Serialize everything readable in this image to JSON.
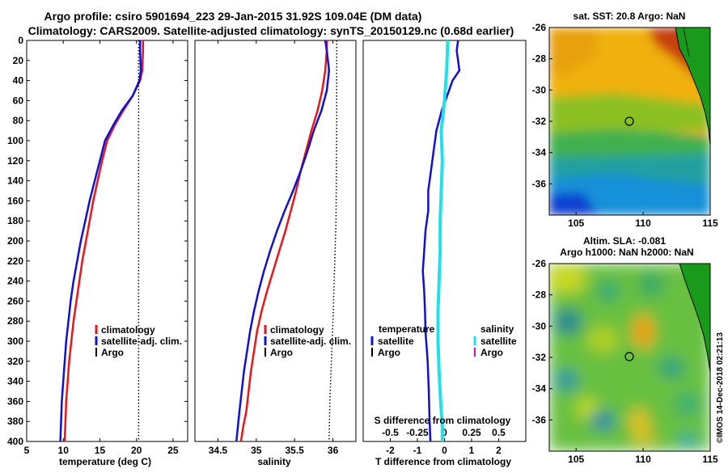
{
  "titles": {
    "line1": "Argo profile: csiro 5901694_223 29-Jan-2015 31.92S 109.04E (DM data)",
    "line2": "Climatology: CARS2009. Satellite-adjusted climatology: synTS_20150129.nc (0.68d earlier)"
  },
  "colors": {
    "climatology": "#e8161b",
    "satellite": "#1010d0",
    "satellite_light": "#22e0e8",
    "argo": "#000000",
    "s_argo": "#c018c0"
  },
  "chart_data": [
    {
      "type": "line",
      "name": "temperature",
      "xlabel": "temperature (deg C)",
      "ylabel": "",
      "xlim": [
        5,
        27
      ],
      "ylim": [
        400,
        0
      ],
      "xticks": [
        "5",
        "10",
        "15",
        "20",
        "25"
      ],
      "yticks": [
        "0",
        "20",
        "40",
        "60",
        "80",
        "100",
        "120",
        "140",
        "160",
        "180",
        "200",
        "220",
        "240",
        "260",
        "280",
        "300",
        "320",
        "340",
        "360",
        "380",
        "400"
      ],
      "legend": [
        "climatology",
        "satellite-adj. clim.",
        "Argo"
      ],
      "series": [
        {
          "name": "climatology",
          "color": "climatology",
          "x": [
            20.9,
            20.9,
            20.8,
            20.5,
            19.5,
            18.2,
            17.0,
            16.0,
            15.3,
            14.7,
            14.1,
            13.6,
            13.1,
            12.6,
            12.2,
            11.8,
            11.4,
            11.1,
            10.8,
            10.6,
            10.4,
            10.2
          ],
          "y": [
            0,
            10,
            30,
            40,
            55,
            70,
            85,
            100,
            120,
            140,
            160,
            180,
            200,
            220,
            240,
            260,
            280,
            300,
            320,
            340,
            360,
            400
          ]
        },
        {
          "name": "satellite-adj. clim.",
          "color": "satellite",
          "x": [
            20.5,
            20.5,
            20.6,
            20.4,
            19.5,
            18.0,
            16.8,
            15.7,
            15.0,
            14.3,
            13.6,
            13.0,
            12.4,
            11.9,
            11.4,
            11.0,
            10.7,
            10.4,
            10.2,
            10.0,
            9.8,
            9.6
          ],
          "y": [
            0,
            10,
            30,
            40,
            55,
            70,
            85,
            100,
            120,
            140,
            160,
            180,
            200,
            220,
            240,
            260,
            280,
            300,
            320,
            340,
            360,
            400
          ]
        },
        {
          "name": "Argo",
          "color": "argo",
          "dotted": true,
          "x": [
            20.3,
            20.3
          ],
          "y": [
            0,
            400
          ]
        }
      ]
    },
    {
      "type": "line",
      "name": "salinity",
      "xlabel": "salinity",
      "xlim": [
        34.2,
        36.3
      ],
      "ylim": [
        400,
        0
      ],
      "xticks": [
        "34.5",
        "35",
        "35.5",
        "36"
      ],
      "legend": [
        "climatology",
        "satellite-adj. clim.",
        "Argo"
      ],
      "series": [
        {
          "name": "climatology",
          "color": "climatology",
          "x": [
            35.92,
            35.92,
            35.9,
            35.86,
            35.8,
            35.72,
            35.65,
            35.58,
            35.52,
            35.45,
            35.38,
            35.3,
            35.22,
            35.14,
            35.07,
            35.01,
            34.97,
            34.93,
            34.9,
            34.87,
            34.83,
            34.8
          ],
          "y": [
            0,
            10,
            30,
            50,
            70,
            90,
            110,
            130,
            150,
            170,
            190,
            210,
            230,
            250,
            270,
            290,
            310,
            330,
            350,
            370,
            385,
            400
          ]
        },
        {
          "name": "satellite-adj. clim.",
          "color": "satellite",
          "x": [
            35.9,
            35.92,
            35.95,
            35.92,
            35.85,
            35.75,
            35.67,
            35.58,
            35.48,
            35.37,
            35.27,
            35.18,
            35.1,
            35.03,
            34.97,
            34.92,
            34.88,
            34.84,
            34.81,
            34.78,
            34.76,
            34.74
          ],
          "y": [
            0,
            10,
            30,
            50,
            70,
            90,
            110,
            130,
            150,
            170,
            190,
            210,
            230,
            250,
            270,
            290,
            310,
            330,
            350,
            370,
            385,
            400
          ]
        },
        {
          "name": "Argo",
          "color": "argo",
          "dotted": true,
          "x": [
            36.05,
            36.05,
            36.04,
            36.0,
            35.96,
            35.95
          ],
          "y": [
            0,
            80,
            180,
            280,
            360,
            400
          ]
        }
      ]
    },
    {
      "type": "line",
      "name": "difference from climatology",
      "xlabel": "T difference from climatology",
      "xlabel_top": "S difference from climatology",
      "xlim_T": [
        -3,
        3
      ],
      "xlim_S": [
        -0.75,
        0.75
      ],
      "ylim": [
        400,
        0
      ],
      "xticks_T": [
        "-2",
        "-1",
        "0",
        "1",
        "2"
      ],
      "xticks_S": [
        "-0.5",
        "-0.25",
        "0",
        "0.25",
        "0.5"
      ],
      "legend_temperature": {
        "title": "temperature",
        "items": [
          "satellite",
          "Argo"
        ]
      },
      "legend_salinity": {
        "title": "salinity",
        "items": [
          "satellite",
          "Argo"
        ]
      },
      "series": [
        {
          "name": "T satellite",
          "axis": "T",
          "color": "satellite",
          "x": [
            0.5,
            0.45,
            0.5,
            0.55,
            0.3,
            0.1,
            -0.1,
            -0.3,
            -0.4,
            -0.5,
            -0.6,
            -0.6,
            -0.7,
            -0.75,
            -0.8,
            -0.75,
            -0.72,
            -0.7,
            -0.62,
            -0.58,
            -0.55,
            -0.52
          ],
          "y": [
            0,
            10,
            20,
            30,
            40,
            55,
            70,
            90,
            110,
            130,
            150,
            170,
            190,
            210,
            230,
            250,
            270,
            290,
            320,
            350,
            380,
            400
          ]
        },
        {
          "name": "S satellite",
          "axis": "S",
          "color": "satellite_light",
          "x": [
            0.03,
            0.02,
            0.0,
            -0.03,
            -0.02,
            -0.03,
            -0.04,
            -0.04,
            -0.05,
            -0.06,
            -0.06,
            -0.05,
            -0.04,
            -0.03,
            -0.02,
            -0.02
          ],
          "y": [
            0,
            30,
            60,
            90,
            120,
            150,
            180,
            210,
            240,
            270,
            300,
            330,
            350,
            370,
            385,
            400
          ]
        }
      ]
    },
    {
      "type": "heatmap",
      "name": "sst-map",
      "title": "sat. SST: 20.8 Argo: NaN",
      "xlim": [
        103,
        115
      ],
      "ylim": [
        -38,
        -26
      ],
      "xticks": [
        "105",
        "110",
        "115"
      ],
      "yticks": [
        "-26",
        "-28",
        "-30",
        "-32",
        "-34",
        "-36"
      ],
      "marker": {
        "lon": 109.04,
        "lat": -31.92
      }
    },
    {
      "type": "heatmap",
      "name": "sla-map",
      "title1": "Altim. SLA: -0.081",
      "title2": "Argo h1000: NaN h2000: NaN",
      "xlim": [
        103,
        115
      ],
      "ylim": [
        -38,
        -26
      ],
      "xticks": [
        "105",
        "110",
        "115"
      ],
      "yticks": [
        "-26",
        "-28",
        "-30",
        "-32",
        "-34",
        "-36"
      ],
      "marker": {
        "lon": 109.04,
        "lat": -31.92
      }
    }
  ],
  "credit": "©IMOS 14-Dec-2018 02:21:13"
}
